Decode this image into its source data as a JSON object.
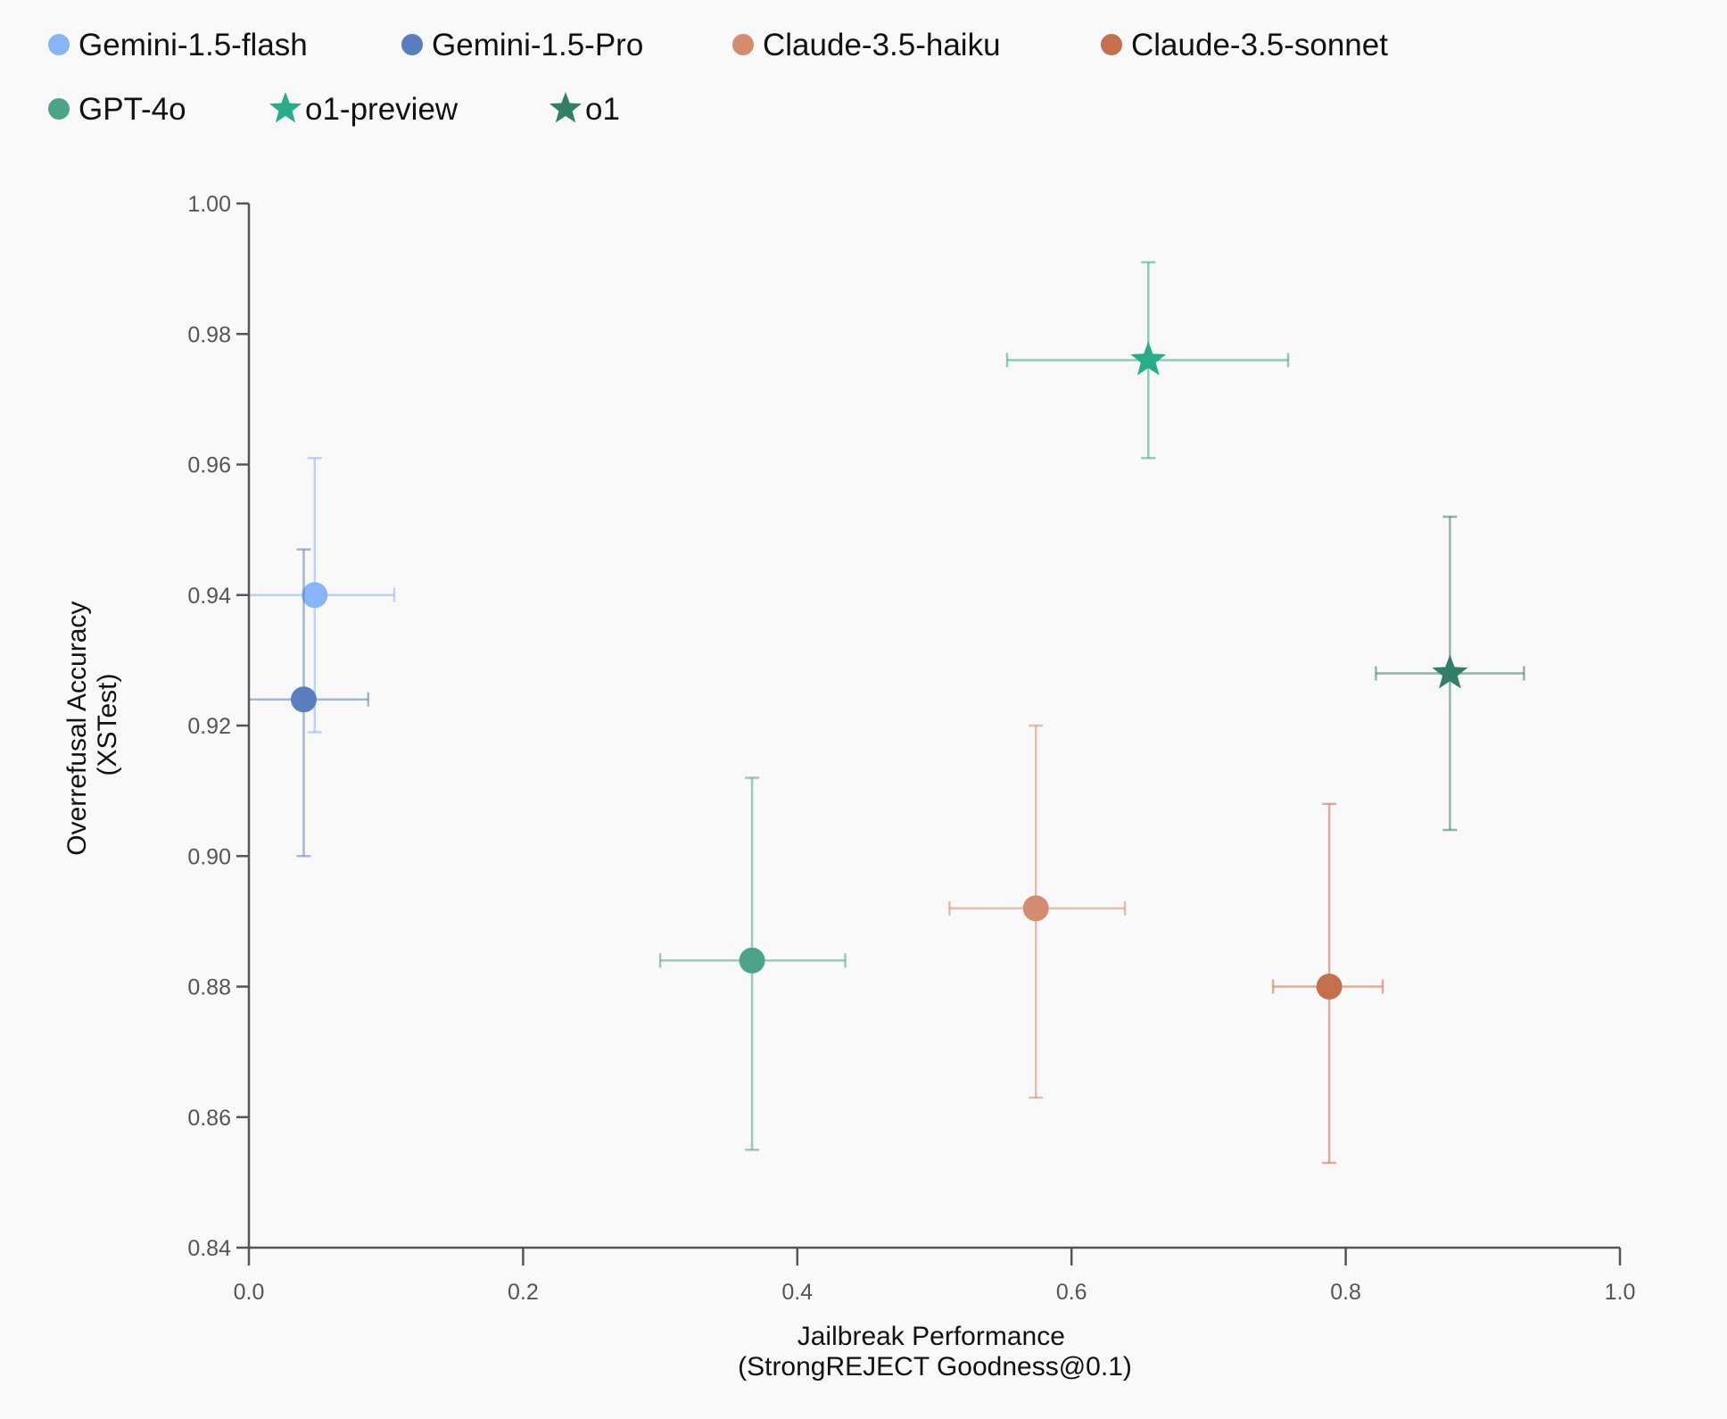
{
  "chart_data": {
    "type": "scatter",
    "title": "",
    "xlabel": [
      "Jailbreak Performance",
      "(StrongREJECT Goodness@0.1)"
    ],
    "ylabel": [
      "Overrefusal Accuracy",
      "(XSTest)"
    ],
    "xlim": [
      0.0,
      1.0
    ],
    "ylim": [
      0.84,
      1.0
    ],
    "xticks": [
      "0.0",
      "0.2",
      "0.4",
      "0.6",
      "0.8",
      "1.0"
    ],
    "yticks": [
      "0.84",
      "0.86",
      "0.88",
      "0.90",
      "0.92",
      "0.94",
      "0.96",
      "0.98",
      "1.00"
    ],
    "grid": false,
    "legend_position": "top",
    "series": [
      {
        "name": "Gemini-1.5-flash",
        "marker": "circle",
        "color": "#8ab4f8",
        "x": 0.048,
        "y": 0.94,
        "x_err": [
          -0.01,
          0.106
        ],
        "y_err": [
          0.919,
          0.961
        ]
      },
      {
        "name": "Gemini-1.5-Pro",
        "marker": "circle",
        "color": "#5a7fbe",
        "x": 0.04,
        "y": 0.924,
        "x_err": [
          -0.01,
          0.087
        ],
        "y_err": [
          0.9,
          0.947
        ]
      },
      {
        "name": "Claude-3.5-haiku",
        "marker": "circle",
        "color": "#d48c70",
        "x": 0.574,
        "y": 0.892,
        "x_err": [
          0.511,
          0.639
        ],
        "y_err": [
          0.863,
          0.92
        ]
      },
      {
        "name": "Claude-3.5-sonnet",
        "marker": "circle",
        "color": "#c4704e",
        "x": 0.788,
        "y": 0.88,
        "x_err": [
          0.747,
          0.827
        ],
        "y_err": [
          0.853,
          0.908
        ]
      },
      {
        "name": "GPT-4o",
        "marker": "circle",
        "color": "#4da38a",
        "x": 0.367,
        "y": 0.884,
        "x_err": [
          0.3,
          0.435
        ],
        "y_err": [
          0.855,
          0.912
        ]
      },
      {
        "name": "o1-preview",
        "marker": "star",
        "color": "#2aab8a",
        "x": 0.656,
        "y": 0.976,
        "x_err": [
          0.553,
          0.758
        ],
        "y_err": [
          0.961,
          0.991
        ]
      },
      {
        "name": "o1",
        "marker": "star",
        "color": "#337e66",
        "x": 0.876,
        "y": 0.928,
        "x_err": [
          0.822,
          0.93
        ],
        "y_err": [
          0.904,
          0.952
        ]
      }
    ]
  }
}
